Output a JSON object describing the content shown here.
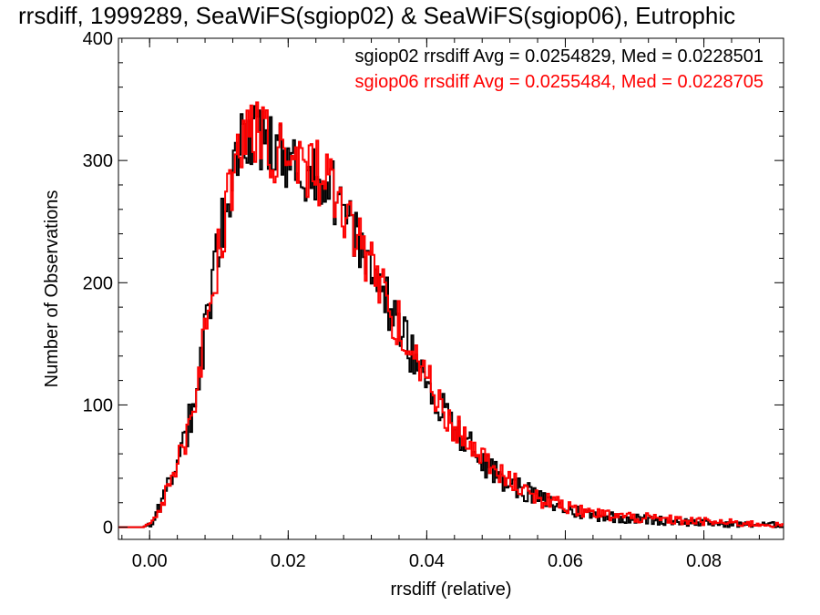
{
  "chart_data": {
    "type": "histogram",
    "title": "rrsdiff, 1999289, SeaWiFS(sgiop02) & SeaWiFS(sgiop06), Eutrophic",
    "xlabel": "rrsdiff (relative)",
    "ylabel": "Number of Observations",
    "xlim": [
      -0.0045,
      0.0915
    ],
    "ylim": [
      -10,
      400
    ],
    "x_ticks": [
      "0.00",
      "0.02",
      "0.04",
      "0.06",
      "0.08"
    ],
    "y_ticks": [
      "0",
      "100",
      "200",
      "300",
      "400"
    ],
    "series_colors": [
      "#000000",
      "#ff0000"
    ],
    "series": [
      {
        "name": "sgiop02",
        "stats_label": "sgiop02 rrsdiff Avg = 0.0254829, Med = 0.0228501",
        "anchors": [
          [
            -0.0045,
            0
          ],
          [
            -0.002,
            0
          ],
          [
            -0.001,
            0
          ],
          [
            0,
            2
          ],
          [
            0.001,
            12
          ],
          [
            0.002,
            22
          ],
          [
            0.003,
            40
          ],
          [
            0.004,
            55
          ],
          [
            0.005,
            70
          ],
          [
            0.006,
            92
          ],
          [
            0.007,
            125
          ],
          [
            0.008,
            160
          ],
          [
            0.009,
            195
          ],
          [
            0.01,
            230
          ],
          [
            0.011,
            262
          ],
          [
            0.012,
            290
          ],
          [
            0.013,
            310
          ],
          [
            0.014,
            320
          ],
          [
            0.015,
            320
          ],
          [
            0.016,
            316
          ],
          [
            0.018,
            306
          ],
          [
            0.02,
            300
          ],
          [
            0.022,
            295
          ],
          [
            0.024,
            290
          ],
          [
            0.026,
            280
          ],
          [
            0.027,
            270
          ],
          [
            0.028,
            255
          ],
          [
            0.03,
            235
          ],
          [
            0.032,
            212
          ],
          [
            0.034,
            188
          ],
          [
            0.036,
            163
          ],
          [
            0.038,
            140
          ],
          [
            0.04,
            120
          ],
          [
            0.042,
            100
          ],
          [
            0.044,
            82
          ],
          [
            0.046,
            67
          ],
          [
            0.048,
            55
          ],
          [
            0.05,
            44
          ],
          [
            0.052,
            36
          ],
          [
            0.054,
            30
          ],
          [
            0.056,
            24
          ],
          [
            0.058,
            19
          ],
          [
            0.06,
            15
          ],
          [
            0.062,
            12
          ],
          [
            0.064,
            10
          ],
          [
            0.066,
            9
          ],
          [
            0.068,
            8
          ],
          [
            0.07,
            7
          ],
          [
            0.072,
            6
          ],
          [
            0.075,
            5
          ],
          [
            0.078,
            4
          ],
          [
            0.082,
            3
          ],
          [
            0.086,
            2
          ],
          [
            0.09,
            2
          ],
          [
            0.0915,
            1
          ]
        ]
      },
      {
        "name": "sgiop06",
        "stats_label": "sgiop06 rrsdiff Avg = 0.0255484, Med = 0.0228705",
        "anchors": [
          [
            -0.0045,
            0
          ],
          [
            -0.002,
            0
          ],
          [
            -0.001,
            0
          ],
          [
            0,
            2
          ],
          [
            0.001,
            11
          ],
          [
            0.002,
            20
          ],
          [
            0.003,
            37
          ],
          [
            0.004,
            52
          ],
          [
            0.005,
            67
          ],
          [
            0.006,
            88
          ],
          [
            0.007,
            120
          ],
          [
            0.008,
            155
          ],
          [
            0.009,
            190
          ],
          [
            0.01,
            225
          ],
          [
            0.011,
            258
          ],
          [
            0.012,
            287
          ],
          [
            0.013,
            308
          ],
          [
            0.014,
            320
          ],
          [
            0.015,
            323
          ],
          [
            0.016,
            318
          ],
          [
            0.018,
            308
          ],
          [
            0.02,
            302
          ],
          [
            0.022,
            297
          ],
          [
            0.024,
            292
          ],
          [
            0.026,
            282
          ],
          [
            0.027,
            272
          ],
          [
            0.028,
            258
          ],
          [
            0.03,
            237
          ],
          [
            0.032,
            214
          ],
          [
            0.034,
            190
          ],
          [
            0.036,
            165
          ],
          [
            0.038,
            142
          ],
          [
            0.04,
            121
          ],
          [
            0.042,
            101
          ],
          [
            0.044,
            83
          ],
          [
            0.046,
            68
          ],
          [
            0.048,
            56
          ],
          [
            0.05,
            45
          ],
          [
            0.052,
            37
          ],
          [
            0.054,
            31
          ],
          [
            0.056,
            25
          ],
          [
            0.058,
            20
          ],
          [
            0.06,
            16
          ],
          [
            0.062,
            13
          ],
          [
            0.064,
            11
          ],
          [
            0.066,
            10
          ],
          [
            0.068,
            9
          ],
          [
            0.07,
            8
          ],
          [
            0.072,
            7
          ],
          [
            0.075,
            6
          ],
          [
            0.078,
            5
          ],
          [
            0.082,
            4
          ],
          [
            0.086,
            3
          ],
          [
            0.09,
            2
          ],
          [
            0.0915,
            1
          ]
        ]
      }
    ],
    "bin_width": 0.00028,
    "grid": false,
    "legend_placement": "top-right"
  }
}
